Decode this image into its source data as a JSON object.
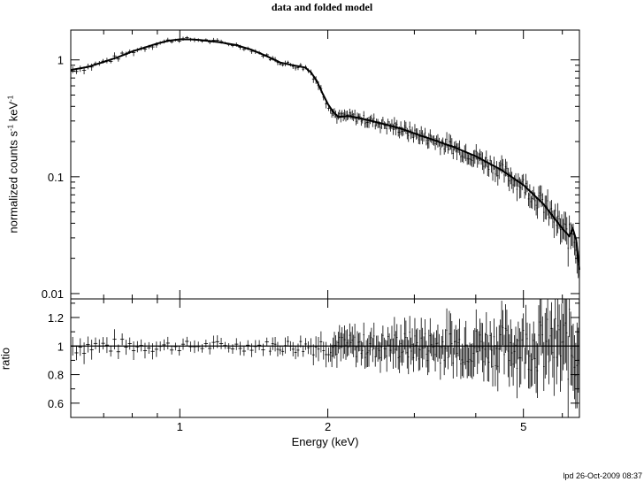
{
  "title": "data and folded model",
  "footer_stamp": "lpd 26-Oct-2009 08:37",
  "chart_data": [
    {
      "type": "line",
      "panel": "top",
      "ylabel_main": "normalized counts s",
      "ylabel_sup1": "-1",
      "ylabel_mid": " keV",
      "ylabel_sup2": "-1",
      "xscale": "log",
      "yscale": "log",
      "xlim": [
        0.6,
        6.5
      ],
      "ylim": [
        0.009,
        1.8
      ],
      "yticks": [
        {
          "v": 1,
          "label": "1"
        },
        {
          "v": 0.1,
          "label": "0.1"
        },
        {
          "v": 0.01,
          "label": "0.01"
        }
      ],
      "grid": false,
      "series": [
        {
          "style": "crosses-with-model-line",
          "color": "#000000",
          "model": [
            [
              0.6,
              0.82
            ],
            [
              0.65,
              0.87
            ],
            [
              0.7,
              0.96
            ],
            [
              0.75,
              1.06
            ],
            [
              0.8,
              1.18
            ],
            [
              0.85,
              1.28
            ],
            [
              0.9,
              1.38
            ],
            [
              0.95,
              1.46
            ],
            [
              1.0,
              1.5
            ],
            [
              1.05,
              1.5
            ],
            [
              1.1,
              1.48
            ],
            [
              1.2,
              1.42
            ],
            [
              1.3,
              1.34
            ],
            [
              1.4,
              1.22
            ],
            [
              1.5,
              1.08
            ],
            [
              1.6,
              0.95
            ],
            [
              1.7,
              0.9
            ],
            [
              1.8,
              0.86
            ],
            [
              1.85,
              0.78
            ],
            [
              1.9,
              0.66
            ],
            [
              1.95,
              0.52
            ],
            [
              2.0,
              0.42
            ],
            [
              2.05,
              0.36
            ],
            [
              2.1,
              0.325
            ],
            [
              2.2,
              0.33
            ],
            [
              2.3,
              0.32
            ],
            [
              2.5,
              0.295
            ],
            [
              2.8,
              0.26
            ],
            [
              3.0,
              0.235
            ],
            [
              3.3,
              0.205
            ],
            [
              3.6,
              0.18
            ],
            [
              4.0,
              0.15
            ],
            [
              4.5,
              0.115
            ],
            [
              5.0,
              0.085
            ],
            [
              5.5,
              0.058
            ],
            [
              6.0,
              0.036
            ],
            [
              6.2,
              0.031
            ],
            [
              6.3,
              0.036
            ],
            [
              6.4,
              0.029
            ],
            [
              6.5,
              0.016
            ]
          ]
        }
      ]
    },
    {
      "type": "scatter",
      "panel": "bottom",
      "ylabel": "ratio",
      "xlabel": "Energy (keV)",
      "xscale": "log",
      "xlim": [
        0.6,
        6.5
      ],
      "ylim": [
        0.5,
        1.33
      ],
      "yticks": [
        {
          "v": 1.2,
          "label": "1.2"
        },
        {
          "v": 1,
          "label": "1"
        },
        {
          "v": 0.8,
          "label": "0.8"
        },
        {
          "v": 0.6,
          "label": "0.6"
        }
      ],
      "xticks": [
        {
          "v": 1,
          "label": "1"
        },
        {
          "v": 2,
          "label": "2"
        },
        {
          "v": 5,
          "label": "5"
        }
      ],
      "reference_line": 1.0,
      "scatter_envelope": [
        [
          0.6,
          0.07
        ],
        [
          1.0,
          0.04
        ],
        [
          1.5,
          0.04
        ],
        [
          2.0,
          0.08
        ],
        [
          3.0,
          0.12
        ],
        [
          4.0,
          0.15
        ],
        [
          5.0,
          0.18
        ],
        [
          6.0,
          0.25
        ],
        [
          6.5,
          0.35
        ]
      ]
    }
  ]
}
